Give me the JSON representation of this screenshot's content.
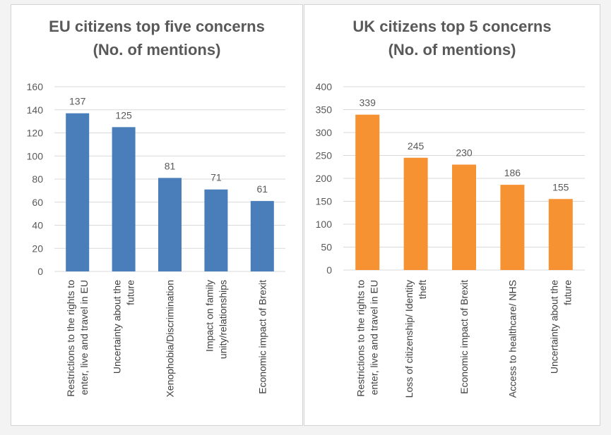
{
  "colors": {
    "eu_bar": "#4a7ebb",
    "uk_bar": "#f79233",
    "grid": "#d9d9d9",
    "text": "#595959"
  },
  "chart_data": [
    {
      "type": "bar",
      "id": "eu",
      "title_line1": "EU citizens top five concerns",
      "title_line2": "(No. of mentions)",
      "categories": [
        [
          "Restrictions to the rights to",
          "enter, live and travel in EU"
        ],
        [
          "Uncertainty about the",
          "future"
        ],
        [
          "Xenophobia/Discrimination"
        ],
        [
          "Impact on family",
          "unity/relationships"
        ],
        [
          "Economic impact of Brexit"
        ]
      ],
      "values": [
        137,
        125,
        81,
        71,
        61
      ],
      "ylim": [
        0,
        160
      ],
      "yticks": [
        0,
        20,
        40,
        60,
        80,
        100,
        120,
        140,
        160
      ],
      "xlabel": "",
      "ylabel": "",
      "grid": true,
      "legend": "none",
      "color": "#4a7ebb"
    },
    {
      "type": "bar",
      "id": "uk",
      "title_line1": "UK citizens top 5 concerns",
      "title_line2": "(No. of mentions)",
      "categories": [
        [
          "Restrictions to the rights to",
          "enter, live and travel in EU"
        ],
        [
          "Loss of citizenship/ Identity",
          "theft"
        ],
        [
          "Economic impact of Brexit"
        ],
        [
          "Access to healthcare/ NHS"
        ],
        [
          "Uncertainty about the",
          "future"
        ]
      ],
      "values": [
        339,
        245,
        230,
        186,
        155
      ],
      "ylim": [
        0,
        400
      ],
      "yticks": [
        0,
        50,
        100,
        150,
        200,
        250,
        300,
        350,
        400
      ],
      "xlabel": "",
      "ylabel": "",
      "grid": true,
      "legend": "none",
      "color": "#f79233"
    }
  ]
}
